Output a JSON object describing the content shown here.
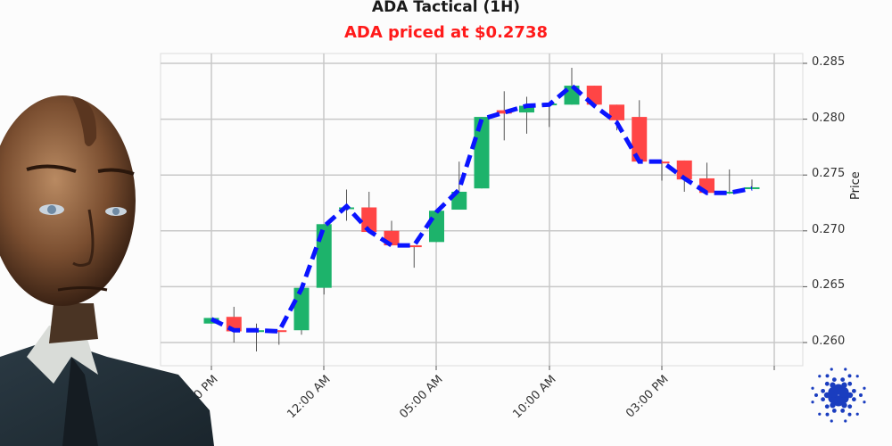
{
  "header": {
    "title": "ADA Tactical (1H)",
    "subtitle": "ADA priced at $0.2738",
    "subtitle_color": "#ff1a1a"
  },
  "chart_data": {
    "type": "candlestick",
    "title": "ADA Tactical (1H)",
    "subtitle": "ADA priced at $0.2738",
    "xlabel": "",
    "ylabel": "Price",
    "ylim": [
      0.2585,
      0.2862
    ],
    "y_ticks": [
      "0.260",
      "0.265",
      "0.270",
      "0.275",
      "0.280",
      "0.285"
    ],
    "x_ticks": [
      "07:00 PM",
      "12:00 AM",
      "05:00 AM",
      "10:00 AM",
      "03:00 PM"
    ],
    "grid": true,
    "y_axis_position": "right",
    "up_color": "#1db36b",
    "down_color": "#ff4545",
    "candles": [
      {
        "o": 0.2617,
        "h": 0.2622,
        "l": 0.2617,
        "c": 0.2622
      },
      {
        "o": 0.2623,
        "h": 0.2632,
        "l": 0.26,
        "c": 0.261
      },
      {
        "o": 0.2611,
        "h": 0.2617,
        "l": 0.2592,
        "c": 0.2611
      },
      {
        "o": 0.2611,
        "h": 0.2611,
        "l": 0.2598,
        "c": 0.261
      },
      {
        "o": 0.2611,
        "h": 0.2649,
        "l": 0.2607,
        "c": 0.2649
      },
      {
        "o": 0.2649,
        "h": 0.2706,
        "l": 0.2643,
        "c": 0.2706
      },
      {
        "o": 0.272,
        "h": 0.2737,
        "l": 0.2709,
        "c": 0.2721
      },
      {
        "o": 0.2721,
        "h": 0.2735,
        "l": 0.2699,
        "c": 0.2699
      },
      {
        "o": 0.27,
        "h": 0.2709,
        "l": 0.2687,
        "c": 0.2687
      },
      {
        "o": 0.2687,
        "h": 0.2687,
        "l": 0.2667,
        "c": 0.2686
      },
      {
        "o": 0.269,
        "h": 0.2718,
        "l": 0.269,
        "c": 0.2718
      },
      {
        "o": 0.2719,
        "h": 0.2762,
        "l": 0.2719,
        "c": 0.2735
      },
      {
        "o": 0.2738,
        "h": 0.2802,
        "l": 0.2738,
        "c": 0.2802
      },
      {
        "o": 0.2808,
        "h": 0.2825,
        "l": 0.2781,
        "c": 0.2805
      },
      {
        "o": 0.2806,
        "h": 0.282,
        "l": 0.2787,
        "c": 0.2812
      },
      {
        "o": 0.2813,
        "h": 0.2814,
        "l": 0.2793,
        "c": 0.2814
      },
      {
        "o": 0.2813,
        "h": 0.2846,
        "l": 0.2813,
        "c": 0.283
      },
      {
        "o": 0.283,
        "h": 0.283,
        "l": 0.2813,
        "c": 0.2813
      },
      {
        "o": 0.2813,
        "h": 0.2813,
        "l": 0.279,
        "c": 0.2799
      },
      {
        "o": 0.2802,
        "h": 0.2817,
        "l": 0.2762,
        "c": 0.2762
      },
      {
        "o": 0.2762,
        "h": 0.2763,
        "l": 0.2745,
        "c": 0.2761
      },
      {
        "o": 0.2763,
        "h": 0.2763,
        "l": 0.2735,
        "c": 0.2746
      },
      {
        "o": 0.2747,
        "h": 0.2761,
        "l": 0.2734,
        "c": 0.2734
      },
      {
        "o": 0.2734,
        "h": 0.2755,
        "l": 0.2733,
        "c": 0.2735
      },
      {
        "o": 0.2738,
        "h": 0.2746,
        "l": 0.2738,
        "c": 0.2739
      }
    ],
    "series": [
      {
        "name": "Moving average",
        "style": "dashed",
        "color": "#0a14ff",
        "values": [
          0.2621,
          0.2611,
          0.2611,
          0.261,
          0.2648,
          0.2704,
          0.2722,
          0.27,
          0.2687,
          0.2687,
          0.2717,
          0.2737,
          0.28,
          0.2806,
          0.2812,
          0.2813,
          0.283,
          0.2812,
          0.2797,
          0.2762,
          0.2762,
          0.2747,
          0.2734,
          0.2734,
          0.2738
        ]
      }
    ]
  },
  "decorations": {
    "person": "ai-humanoid-businessman",
    "logo": "cardano-logo",
    "logo_color": "#1a3dbf"
  }
}
